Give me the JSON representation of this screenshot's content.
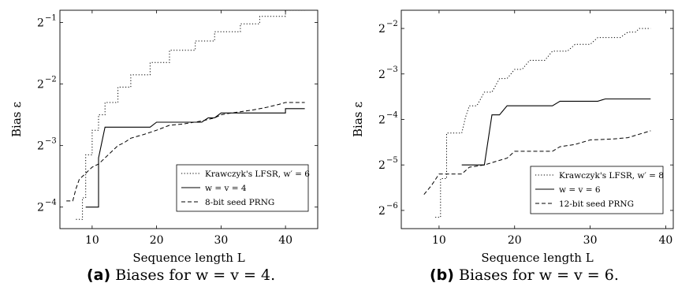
{
  "chart_data": [
    {
      "type": "line",
      "xlabel": "Sequence length L",
      "ylabel": "Bias ε",
      "xlim": [
        5,
        45
      ],
      "ylim_log2": [
        -4.35,
        -0.8
      ],
      "xticks": [
        10,
        20,
        30,
        40
      ],
      "yticks": [
        {
          "value": -1,
          "label": "2",
          "exp": "−1"
        },
        {
          "value": -2,
          "label": "2",
          "exp": "−2"
        },
        {
          "value": -3,
          "label": "2",
          "exp": "−3"
        },
        {
          "value": -4,
          "label": "2",
          "exp": "−4"
        }
      ],
      "legend_position": "bottom-right",
      "caption": {
        "tag": "(a)",
        "text": "Biases for w = v = 4."
      },
      "series": [
        {
          "name": "Krawczyk's LFSR, w′ = 6",
          "style": "dotted",
          "points": [
            [
              7.5,
              -4.2
            ],
            [
              8.5,
              -4.2
            ],
            [
              8.5,
              -3.85
            ],
            [
              9,
              -3.85
            ],
            [
              9,
              -3.15
            ],
            [
              10,
              -3.15
            ],
            [
              10,
              -2.75
            ],
            [
              11,
              -2.75
            ],
            [
              11,
              -2.5
            ],
            [
              12,
              -2.5
            ],
            [
              12,
              -2.3
            ],
            [
              14,
              -2.3
            ],
            [
              14,
              -2.05
            ],
            [
              16,
              -2.05
            ],
            [
              16,
              -1.85
            ],
            [
              19,
              -1.85
            ],
            [
              19,
              -1.65
            ],
            [
              22,
              -1.65
            ],
            [
              22,
              -1.45
            ],
            [
              26,
              -1.45
            ],
            [
              26,
              -1.3
            ],
            [
              29,
              -1.3
            ],
            [
              29,
              -1.15
            ],
            [
              33,
              -1.15
            ],
            [
              33,
              -1.02
            ],
            [
              36,
              -1.02
            ],
            [
              36,
              -0.9
            ],
            [
              40,
              -0.9
            ],
            [
              40,
              -0.8
            ],
            [
              43,
              -0.8
            ]
          ]
        },
        {
          "name": "w = v = 4",
          "style": "solid",
          "points": [
            [
              9,
              -4
            ],
            [
              11,
              -4
            ],
            [
              11,
              -3.2
            ],
            [
              12,
              -2.7
            ],
            [
              19,
              -2.7
            ],
            [
              20,
              -2.62
            ],
            [
              27,
              -2.62
            ],
            [
              28,
              -2.55
            ],
            [
              29,
              -2.55
            ],
            [
              30,
              -2.47
            ],
            [
              40,
              -2.47
            ],
            [
              40,
              -2.4
            ],
            [
              43,
              -2.4
            ]
          ]
        },
        {
          "name": "8-bit seed PRNG",
          "style": "dashed",
          "points": [
            [
              6,
              -3.9
            ],
            [
              7,
              -3.9
            ],
            [
              7.5,
              -3.7
            ],
            [
              8,
              -3.55
            ],
            [
              9,
              -3.45
            ],
            [
              10,
              -3.35
            ],
            [
              11,
              -3.3
            ],
            [
              12,
              -3.2
            ],
            [
              13,
              -3.1
            ],
            [
              14,
              -3
            ],
            [
              15,
              -2.95
            ],
            [
              16,
              -2.88
            ],
            [
              18,
              -2.82
            ],
            [
              20,
              -2.75
            ],
            [
              22,
              -2.67
            ],
            [
              24,
              -2.65
            ],
            [
              27,
              -2.6
            ],
            [
              29,
              -2.55
            ],
            [
              30,
              -2.5
            ],
            [
              31,
              -2.48
            ],
            [
              33,
              -2.45
            ],
            [
              35,
              -2.42
            ],
            [
              37,
              -2.38
            ],
            [
              39,
              -2.33
            ],
            [
              40,
              -2.3
            ],
            [
              43,
              -2.3
            ]
          ]
        }
      ]
    },
    {
      "type": "line",
      "xlabel": "Sequence length L",
      "ylabel": "Bias ε",
      "xlim": [
        5,
        41
      ],
      "ylim_log2": [
        -6.4,
        -1.6
      ],
      "xticks": [
        10,
        20,
        30,
        40
      ],
      "yticks": [
        {
          "value": -2,
          "label": "2",
          "exp": "−2"
        },
        {
          "value": -3,
          "label": "2",
          "exp": "−3"
        },
        {
          "value": -4,
          "label": "2",
          "exp": "−4"
        },
        {
          "value": -5,
          "label": "2",
          "exp": "−5"
        },
        {
          "value": -6,
          "label": "2",
          "exp": "−6"
        }
      ],
      "legend_position": "bottom-right",
      "caption": {
        "tag": "(b)",
        "text": "Biases for w = v = 6."
      },
      "series": [
        {
          "name": "Krawczyk's LFSR, w′ = 8",
          "style": "dotted",
          "points": [
            [
              9.5,
              -6.15
            ],
            [
              10.2,
              -6.15
            ],
            [
              10.2,
              -5.3
            ],
            [
              11,
              -5.3
            ],
            [
              11,
              -4.3
            ],
            [
              13,
              -4.3
            ],
            [
              13.5,
              -3.95
            ],
            [
              14,
              -3.7
            ],
            [
              15,
              -3.7
            ],
            [
              16,
              -3.4
            ],
            [
              17,
              -3.4
            ],
            [
              18,
              -3.1
            ],
            [
              19,
              -3.1
            ],
            [
              20,
              -2.9
            ],
            [
              21,
              -2.9
            ],
            [
              22,
              -2.7
            ],
            [
              24,
              -2.7
            ],
            [
              25,
              -2.5
            ],
            [
              27,
              -2.5
            ],
            [
              28,
              -2.35
            ],
            [
              30,
              -2.35
            ],
            [
              31,
              -2.2
            ],
            [
              34,
              -2.2
            ],
            [
              35,
              -2.08
            ],
            [
              36,
              -2.08
            ],
            [
              36.5,
              -2
            ],
            [
              38,
              -2
            ]
          ]
        },
        {
          "name": "w = v = 6",
          "style": "solid",
          "points": [
            [
              13,
              -5
            ],
            [
              16,
              -5
            ],
            [
              17,
              -3.9
            ],
            [
              18,
              -3.9
            ],
            [
              19,
              -3.7
            ],
            [
              25,
              -3.7
            ],
            [
              26,
              -3.6
            ],
            [
              31,
              -3.6
            ],
            [
              32,
              -3.55
            ],
            [
              38,
              -3.55
            ]
          ]
        },
        {
          "name": "12-bit seed PRNG",
          "style": "dashed",
          "points": [
            [
              8,
              -5.65
            ],
            [
              9,
              -5.45
            ],
            [
              10,
              -5.2
            ],
            [
              13,
              -5.2
            ],
            [
              14,
              -5.05
            ],
            [
              16,
              -5
            ],
            [
              18,
              -4.9
            ],
            [
              19,
              -4.85
            ],
            [
              20,
              -4.7
            ],
            [
              25,
              -4.7
            ],
            [
              26,
              -4.6
            ],
            [
              28,
              -4.55
            ],
            [
              29,
              -4.5
            ],
            [
              30,
              -4.45
            ],
            [
              33,
              -4.43
            ],
            [
              35,
              -4.4
            ],
            [
              37,
              -4.3
            ],
            [
              38,
              -4.25
            ]
          ]
        }
      ]
    }
  ]
}
